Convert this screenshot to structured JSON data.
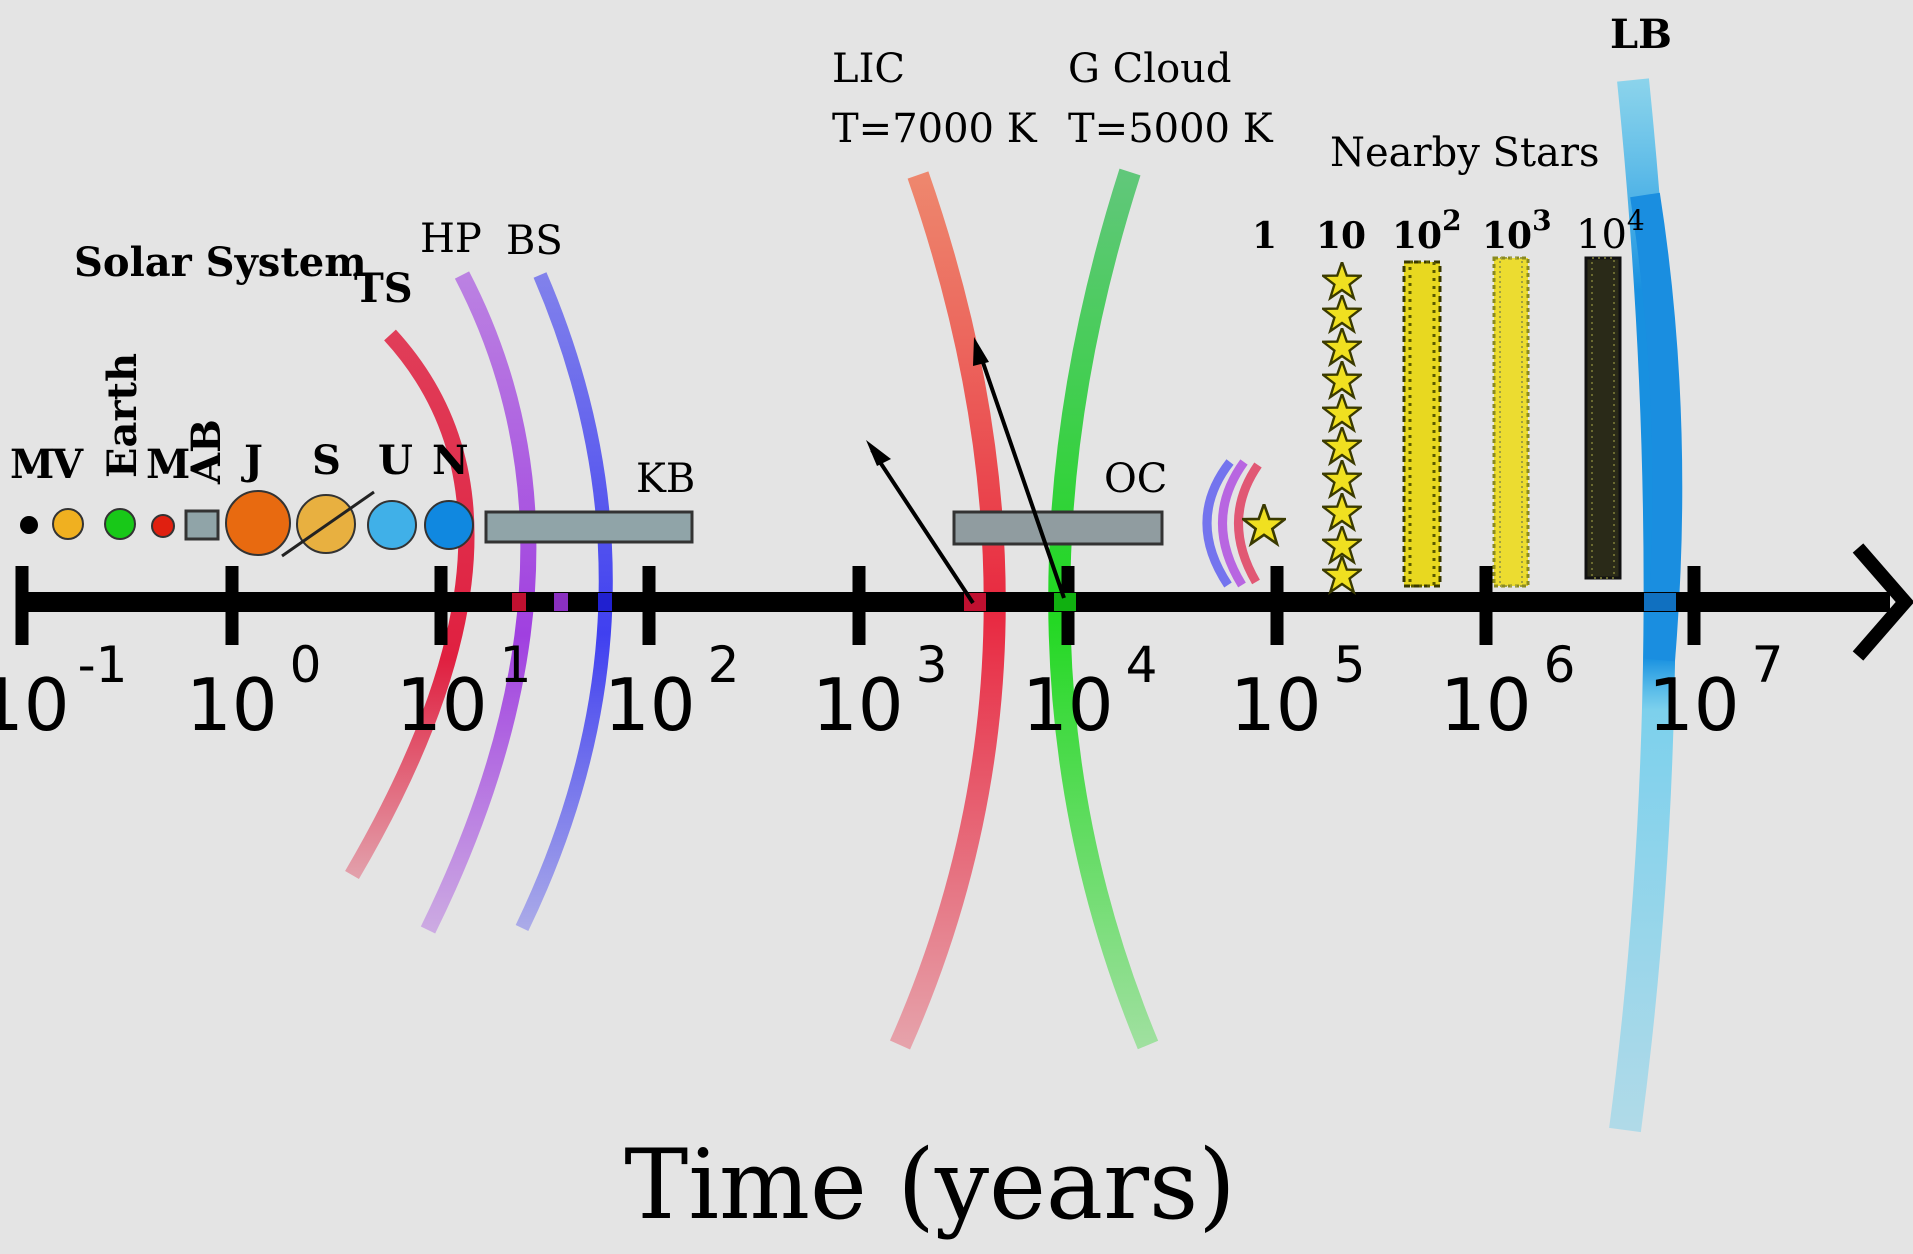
{
  "axis": {
    "title": "Time (years)",
    "ticks": [
      {
        "base": "10",
        "exp": "-1"
      },
      {
        "base": "10",
        "exp": "0"
      },
      {
        "base": "10",
        "exp": "1"
      },
      {
        "base": "10",
        "exp": "2"
      },
      {
        "base": "10",
        "exp": "3"
      },
      {
        "base": "10",
        "exp": "4"
      },
      {
        "base": "10",
        "exp": "5"
      },
      {
        "base": "10",
        "exp": "6"
      },
      {
        "base": "10",
        "exp": "7"
      }
    ]
  },
  "solar_system": {
    "title": "Solar System",
    "planets": [
      "M",
      "V",
      "Earth",
      "M",
      "AB",
      "J",
      "S",
      "U",
      "N"
    ],
    "colors": {
      "mercury": "#000000",
      "venus": "#f0b020",
      "earth": "#18c818",
      "mars": "#e02010",
      "belt": "#90a4a8",
      "jupiter": "#e86a10",
      "saturn": "#e8b040",
      "uranus": "#40b0e8",
      "neptune": "#1088e0"
    }
  },
  "boundaries": {
    "ts": {
      "label": "TS",
      "color": "#e02040"
    },
    "hp": {
      "label": "HP",
      "color": "#a040e0"
    },
    "bs": {
      "label": "BS",
      "color": "#4040f0"
    }
  },
  "kuiper_belt": {
    "label": "KB"
  },
  "oort_cloud": {
    "label": "OC"
  },
  "lic": {
    "name": "LIC",
    "temp": "T=7000 K",
    "color": "#e82840"
  },
  "g_cloud": {
    "name": "G Cloud",
    "temp": "T=5000 K",
    "color": "#20d820"
  },
  "nearby_stars": {
    "title": "Nearby Stars",
    "counts": [
      {
        "base": "1",
        "exp": ""
      },
      {
        "base": "10",
        "exp": ""
      },
      {
        "base": "10",
        "exp": "2"
      },
      {
        "base": "10",
        "exp": "3"
      },
      {
        "base": "10",
        "exp": "4"
      }
    ],
    "star_color": "#f0e020"
  },
  "local_bubble": {
    "label": "LB",
    "color": "#1890e0"
  }
}
